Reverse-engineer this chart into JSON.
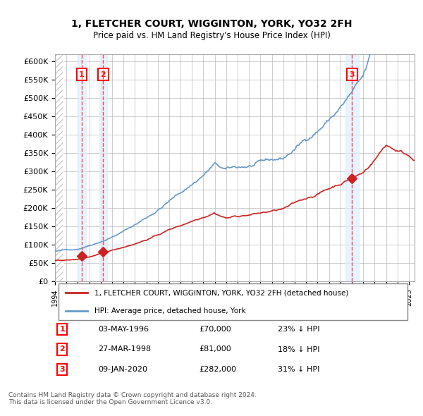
{
  "title": "1, FLETCHER COURT, WIGGINTON, YORK, YO32 2FH",
  "subtitle": "Price paid vs. HM Land Registry's House Price Index (HPI)",
  "background_color": "#ffffff",
  "grid_color": "#bbbbbb",
  "hpi_color": "#6699cc",
  "property_color": "#cc2222",
  "hpi_fill_color": "#ddeeff",
  "sale_marker_color": "#cc2222",
  "sale_vline_color": "#ff4444",
  "sale_highlight_color": "#ddeeff",
  "ylim": [
    0,
    620000
  ],
  "yticks": [
    0,
    50000,
    100000,
    150000,
    200000,
    250000,
    300000,
    350000,
    400000,
    450000,
    500000,
    550000,
    600000
  ],
  "ytick_labels": [
    "£0",
    "£50K",
    "£100K",
    "£150K",
    "£200K",
    "£250K",
    "£300K",
    "£350K",
    "£400K",
    "£450K",
    "£500K",
    "£550K",
    "£600K"
  ],
  "xlim_start": 1994.0,
  "xlim_end": 2025.5,
  "sales": [
    {
      "label": 1,
      "date_str": "03-MAY-1996",
      "year": 1996.35,
      "price": 70000,
      "pct": "23%",
      "direction": "↓"
    },
    {
      "label": 2,
      "date_str": "27-MAR-1998",
      "year": 1998.23,
      "price": 81000,
      "pct": "18%",
      "direction": "↓"
    },
    {
      "label": 3,
      "date_str": "09-JAN-2020",
      "year": 2020.03,
      "price": 282000,
      "pct": "31%",
      "direction": "↓"
    }
  ],
  "legend_property": "1, FLETCHER COURT, WIGGINTON, YORK, YO32 2FH (detached house)",
  "legend_hpi": "HPI: Average price, detached house, York",
  "footer": "Contains HM Land Registry data © Crown copyright and database right 2024.\nThis data is licensed under the Open Government Licence v3.0.",
  "diag_stripe_color": "#dddddd"
}
